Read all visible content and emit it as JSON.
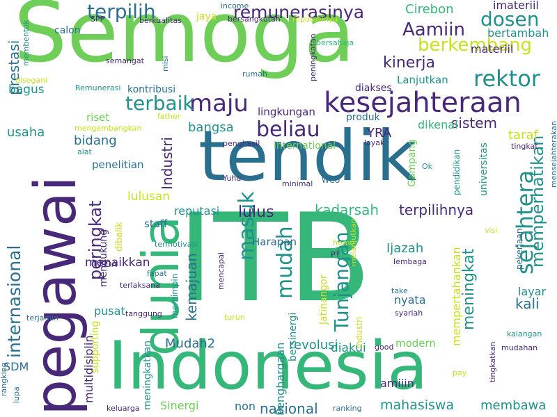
{
  "colors": {
    "background": "#ffffff",
    "purple": "#482878",
    "blue": "#2a6f8e",
    "teal": "#21918c",
    "green": "#35b779",
    "lightgreen": "#6ece58",
    "yellow": "#c8e020"
  },
  "words": [
    {
      "text": "Semoga",
      "orient": "h",
      "color": "lightgreen"
    },
    {
      "text": "tendik",
      "orient": "h",
      "color": "blue"
    },
    {
      "text": "ITB",
      "orient": "h",
      "color": "green"
    },
    {
      "text": "Indonesia",
      "orient": "h",
      "color": "green"
    },
    {
      "text": "pegawai",
      "orient": "v",
      "color": "purple"
    },
    {
      "text": "dunia",
      "orient": "v",
      "color": "green"
    },
    {
      "text": "kesejahteraan",
      "orient": "h",
      "color": "purple"
    },
    {
      "text": "internasional",
      "orient": "v",
      "color": "blue"
    },
    {
      "text": "remunerasinya",
      "orient": "h",
      "color": "purple"
    },
    {
      "text": "terpilih",
      "orient": "h",
      "color": "blue"
    },
    {
      "text": "maju",
      "orient": "h",
      "color": "purple"
    },
    {
      "text": "rektor",
      "orient": "h",
      "color": "teal"
    },
    {
      "text": "berkembang",
      "orient": "h",
      "color": "yellow"
    },
    {
      "text": "dosen",
      "orient": "h",
      "color": "teal"
    },
    {
      "text": "Aamiin",
      "orient": "h",
      "color": "purple"
    },
    {
      "text": "beliau",
      "orient": "h",
      "color": "purple"
    },
    {
      "text": "terbaik",
      "orient": "h",
      "color": "teal"
    },
    {
      "text": "sejahtera",
      "orient": "v",
      "color": "teal"
    },
    {
      "text": "memperhatikan",
      "orient": "v",
      "color": "teal"
    },
    {
      "text": "masuk",
      "orient": "v",
      "color": "teal"
    },
    {
      "text": "mudah",
      "orient": "v",
      "color": "teal"
    },
    {
      "text": "Tunjangan",
      "orient": "v",
      "color": "teal"
    },
    {
      "text": "prestasi",
      "orient": "v",
      "color": "blue"
    },
    {
      "text": "peringkat",
      "orient": "v",
      "color": "purple"
    },
    {
      "text": "Industri",
      "orient": "v",
      "color": "purple"
    },
    {
      "text": "kinerja",
      "orient": "h",
      "color": "purple"
    },
    {
      "text": "Cirebon",
      "orient": "h",
      "color": "green"
    },
    {
      "text": "imateriil",
      "orient": "h",
      "color": "purple"
    },
    {
      "text": "bertambah",
      "orient": "h",
      "color": "teal"
    },
    {
      "text": "materiil",
      "orient": "h",
      "color": "purple"
    },
    {
      "text": "Lanjutkan",
      "orient": "h",
      "color": "teal"
    },
    {
      "text": "diakses",
      "orient": "h",
      "color": "purple"
    },
    {
      "text": "sistem",
      "orient": "h",
      "color": "purple"
    },
    {
      "text": "taraf",
      "orient": "h",
      "color": "yellow"
    },
    {
      "text": "lingkungan",
      "orient": "h",
      "color": "purple"
    },
    {
      "text": "produk",
      "orient": "h",
      "color": "blue"
    },
    {
      "text": "YRA",
      "orient": "h",
      "color": "purple"
    },
    {
      "text": "dikenal",
      "orient": "h",
      "color": "green"
    },
    {
      "text": "bangsa",
      "orient": "h",
      "color": "teal"
    },
    {
      "text": "bidang",
      "orient": "h",
      "color": "blue"
    },
    {
      "text": "penelitian",
      "orient": "h",
      "color": "blue"
    },
    {
      "text": "usaha",
      "orient": "h",
      "color": "teal"
    },
    {
      "text": "bagus",
      "orient": "h",
      "color": "teal"
    },
    {
      "text": "calon",
      "orient": "h",
      "color": "blue"
    },
    {
      "text": "kontribusi",
      "orient": "h",
      "color": "blue"
    },
    {
      "text": "lulus",
      "orient": "h",
      "color": "purple"
    },
    {
      "text": "kadarsah",
      "orient": "h",
      "color": "green"
    },
    {
      "text": "terpilihnya",
      "orient": "h",
      "color": "purple"
    },
    {
      "text": "lulusan",
      "orient": "h",
      "color": "yellow"
    },
    {
      "text": "reputasi",
      "orient": "h",
      "color": "teal"
    },
    {
      "text": "staff",
      "orient": "h",
      "color": "blue"
    },
    {
      "text": "Harapan",
      "orient": "h",
      "color": "blue"
    },
    {
      "text": "Ijazah",
      "orient": "h",
      "color": "teal"
    },
    {
      "text": "meningkat",
      "orient": "v",
      "color": "teal"
    },
    {
      "text": "kali",
      "orient": "h",
      "color": "blue"
    },
    {
      "text": "layar",
      "orient": "h",
      "color": "teal"
    },
    {
      "text": "nyata",
      "orient": "h",
      "color": "blue"
    },
    {
      "text": "menaikkan",
      "orient": "h",
      "color": "purple"
    },
    {
      "text": "kemajuan",
      "orient": "v",
      "color": "blue"
    },
    {
      "text": "Mudah2",
      "orient": "h",
      "color": "blue"
    },
    {
      "text": "revolusi",
      "orient": "h",
      "color": "teal"
    },
    {
      "text": "diakui",
      "orient": "h",
      "color": "teal"
    },
    {
      "text": "modern",
      "orient": "h",
      "color": "lightgreen"
    },
    {
      "text": "nasional",
      "orient": "h",
      "color": "blue"
    },
    {
      "text": "mahasiswa",
      "orient": "h",
      "color": "teal"
    },
    {
      "text": "membawa",
      "orient": "h",
      "color": "teal"
    },
    {
      "text": "amiiin",
      "orient": "h",
      "color": "purple"
    },
    {
      "text": "Sinergi",
      "orient": "h",
      "color": "lightgreen"
    },
    {
      "text": "non",
      "orient": "h",
      "color": "blue"
    },
    {
      "text": "SDM",
      "orient": "h",
      "color": "blue"
    },
    {
      "text": "pusat",
      "orient": "h",
      "color": "teal"
    },
    {
      "text": "riset",
      "orient": "h",
      "color": "lightgreen"
    },
    {
      "text": "international",
      "orient": "h",
      "color": "lightgreen"
    },
    {
      "text": "Penghargaan",
      "orient": "v",
      "color": "teal"
    },
    {
      "text": "multidisiplin",
      "orient": "v",
      "color": "purple"
    },
    {
      "text": "meningkatkan",
      "orient": "v",
      "color": "teal"
    },
    {
      "text": "mendukung",
      "orient": "v",
      "color": "purple"
    },
    {
      "text": "mempertahankan",
      "orient": "v",
      "color": "yellow"
    },
    {
      "text": "Jatinangor",
      "orient": "v",
      "color": "yellow"
    },
    {
      "text": "bersinergi",
      "orient": "v",
      "color": "teal"
    },
    {
      "text": "universitas",
      "orient": "v",
      "color": "teal"
    },
    {
      "text": "Gampang",
      "orient": "v",
      "color": "lightgreen"
    },
    {
      "text": "pendidikan",
      "orient": "v",
      "color": "teal"
    },
    {
      "text": "supporting",
      "orient": "v",
      "color": "yellow"
    },
    {
      "text": "dibalik",
      "orient": "v",
      "color": "yellow"
    },
    {
      "text": "memimpin",
      "orient": "v",
      "color": "teal"
    },
    {
      "text": "pekerjaan",
      "orient": "v",
      "color": "blue"
    },
    {
      "text": "industri",
      "orient": "v",
      "color": "yellow"
    },
    {
      "text": "jaya",
      "orient": "h",
      "color": "yellow"
    },
    {
      "text": "SPP",
      "orient": "h",
      "color": "purple"
    },
    {
      "text": "berkualitas",
      "orient": "h",
      "color": "purple"
    },
    {
      "text": "bersangkutan",
      "orient": "h",
      "color": "purple"
    },
    {
      "text": "reputasinya",
      "orient": "h",
      "color": "yellow"
    },
    {
      "text": "semangat",
      "orient": "h",
      "color": "purple"
    },
    {
      "text": "misi",
      "orient": "v",
      "color": "blue"
    },
    {
      "text": "rumah",
      "orient": "h",
      "color": "blue"
    },
    {
      "text": "peningkatan",
      "orient": "v",
      "color": "purple"
    },
    {
      "text": "bersahaja",
      "orient": "h",
      "color": "green"
    },
    {
      "text": "disegani",
      "orient": "h",
      "color": "yellow"
    },
    {
      "text": "membentuk",
      "orient": "v",
      "color": "teal"
    },
    {
      "text": "Remunerasi",
      "orient": "h",
      "color": "teal"
    },
    {
      "text": "mengembangkan",
      "orient": "h",
      "color": "yellow"
    },
    {
      "text": "father",
      "orient": "h",
      "color": "yellow"
    },
    {
      "text": "fapat",
      "orient": "h",
      "color": "blue"
    },
    {
      "text": "alat",
      "orient": "h",
      "color": "teal"
    },
    {
      "text": "penghasil",
      "orient": "h",
      "color": "purple"
    },
    {
      "text": "layak",
      "orient": "h",
      "color": "purple"
    },
    {
      "text": "Yuhu",
      "orient": "h",
      "color": "purple"
    },
    {
      "text": "minimal",
      "orient": "h",
      "color": "purple"
    },
    {
      "text": "WCU",
      "orient": "h",
      "color": "blue"
    },
    {
      "text": "Ok",
      "orient": "h",
      "color": "teal"
    },
    {
      "text": "tingkat",
      "orient": "h",
      "color": "purple"
    },
    {
      "text": "mensejahterakan",
      "orient": "v",
      "color": "blue"
    },
    {
      "text": "visi",
      "orient": "h",
      "color": "yellow"
    },
    {
      "text": "termotivasi",
      "orient": "h",
      "color": "teal"
    },
    {
      "text": "home",
      "orient": "h",
      "color": "yellow"
    },
    {
      "text": "PT",
      "orient": "h",
      "color": "purple"
    },
    {
      "text": "melanjutkan",
      "orient": "v",
      "color": "yellow"
    },
    {
      "text": "lembaga",
      "orient": "h",
      "color": "purple"
    },
    {
      "text": "mencapai",
      "orient": "v",
      "color": "purple"
    },
    {
      "text": "SDA",
      "orient": "h",
      "color": "purple"
    },
    {
      "text": "terlaksana",
      "orient": "h",
      "color": "purple"
    },
    {
      "text": "take",
      "orient": "h",
      "color": "blue"
    },
    {
      "text": "syariah",
      "orient": "h",
      "color": "purple"
    },
    {
      "text": "terjamin",
      "orient": "h",
      "color": "blue"
    },
    {
      "text": "tanggung",
      "orient": "h",
      "color": "purple"
    },
    {
      "text": "turun",
      "orient": "h",
      "color": "yellow"
    },
    {
      "text": "good",
      "orient": "h",
      "color": "purple"
    },
    {
      "text": "kalangan",
      "orient": "h",
      "color": "teal"
    },
    {
      "text": "mudahan",
      "orient": "h",
      "color": "purple"
    },
    {
      "text": "tingkatkan",
      "orient": "v",
      "color": "purple"
    },
    {
      "text": "pay",
      "orient": "h",
      "color": "yellow"
    },
    {
      "text": "rangking",
      "orient": "v",
      "color": "blue"
    },
    {
      "text": "lupa",
      "orient": "v",
      "color": "blue"
    },
    {
      "text": "keluarga",
      "orient": "h",
      "color": "purple"
    },
    {
      "text": "ranking",
      "orient": "h",
      "color": "blue"
    },
    {
      "text": "income",
      "orient": "h",
      "color": "blue"
    }
  ]
}
